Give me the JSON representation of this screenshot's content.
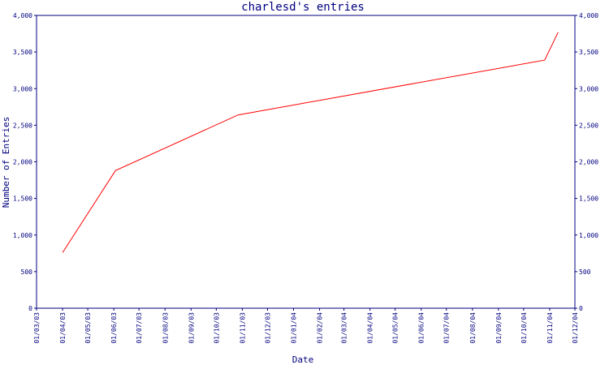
{
  "chart_data": {
    "type": "line",
    "title": "charlesd's entries",
    "xlabel": "Date",
    "ylabel": "Number of Entries",
    "x_ticks": [
      "01/03/03",
      "01/04/03",
      "01/05/03",
      "01/06/03",
      "01/07/03",
      "01/08/03",
      "01/09/03",
      "01/10/03",
      "01/11/03",
      "01/12/03",
      "01/01/04",
      "01/02/04",
      "01/03/04",
      "01/04/04",
      "01/05/04",
      "01/06/04",
      "01/07/04",
      "01/08/04",
      "01/09/04",
      "01/10/04",
      "01/11/04",
      "01/12/04"
    ],
    "y_ticks": [
      "0",
      "500",
      "1,000",
      "1,500",
      "2,000",
      "2,500",
      "3,000",
      "3,500",
      "4,000"
    ],
    "ylim": [
      0,
      4000
    ],
    "grid": false,
    "colors": {
      "axis": "#000080",
      "series": "#ff0000"
    },
    "series": [
      {
        "points": [
          {
            "x": "2003-04-01",
            "y": 760
          },
          {
            "x": "2003-06-03",
            "y": 1880
          },
          {
            "x": "2003-10-27",
            "y": 2640
          },
          {
            "x": "2004-10-26",
            "y": 3390
          },
          {
            "x": "2004-11-11",
            "y": 3770
          }
        ]
      }
    ]
  }
}
